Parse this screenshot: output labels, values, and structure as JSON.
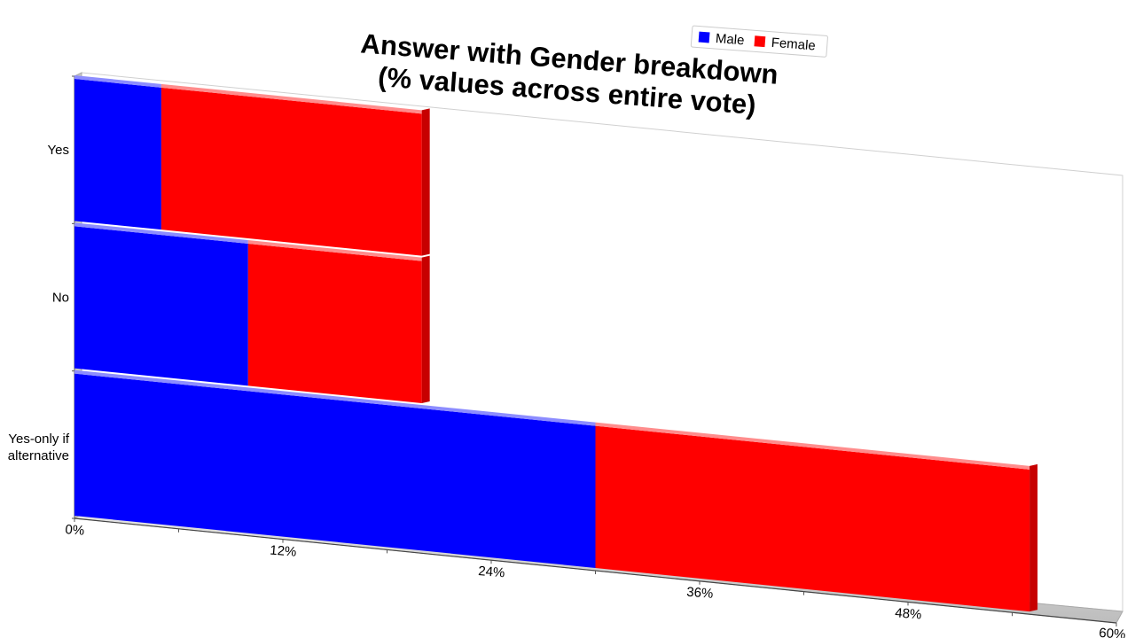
{
  "chart_data": {
    "type": "bar",
    "orientation": "horizontal",
    "stacked": true,
    "title": [
      "Answer with Gender breakdown",
      "(% values across entire vote)"
    ],
    "categories": [
      "Yes",
      "No",
      "Yes-only if alternative"
    ],
    "series": [
      {
        "name": "Male",
        "color": "#0000ff",
        "values": [
          5,
          10,
          30
        ]
      },
      {
        "name": "Female",
        "color": "#ff0000",
        "values": [
          15,
          10,
          25
        ]
      }
    ],
    "x_ticks": [
      "0%",
      "12%",
      "24%",
      "36%",
      "48%",
      "60%"
    ],
    "xlim": [
      0,
      60
    ],
    "legend_position": "top-right",
    "grid": false
  }
}
